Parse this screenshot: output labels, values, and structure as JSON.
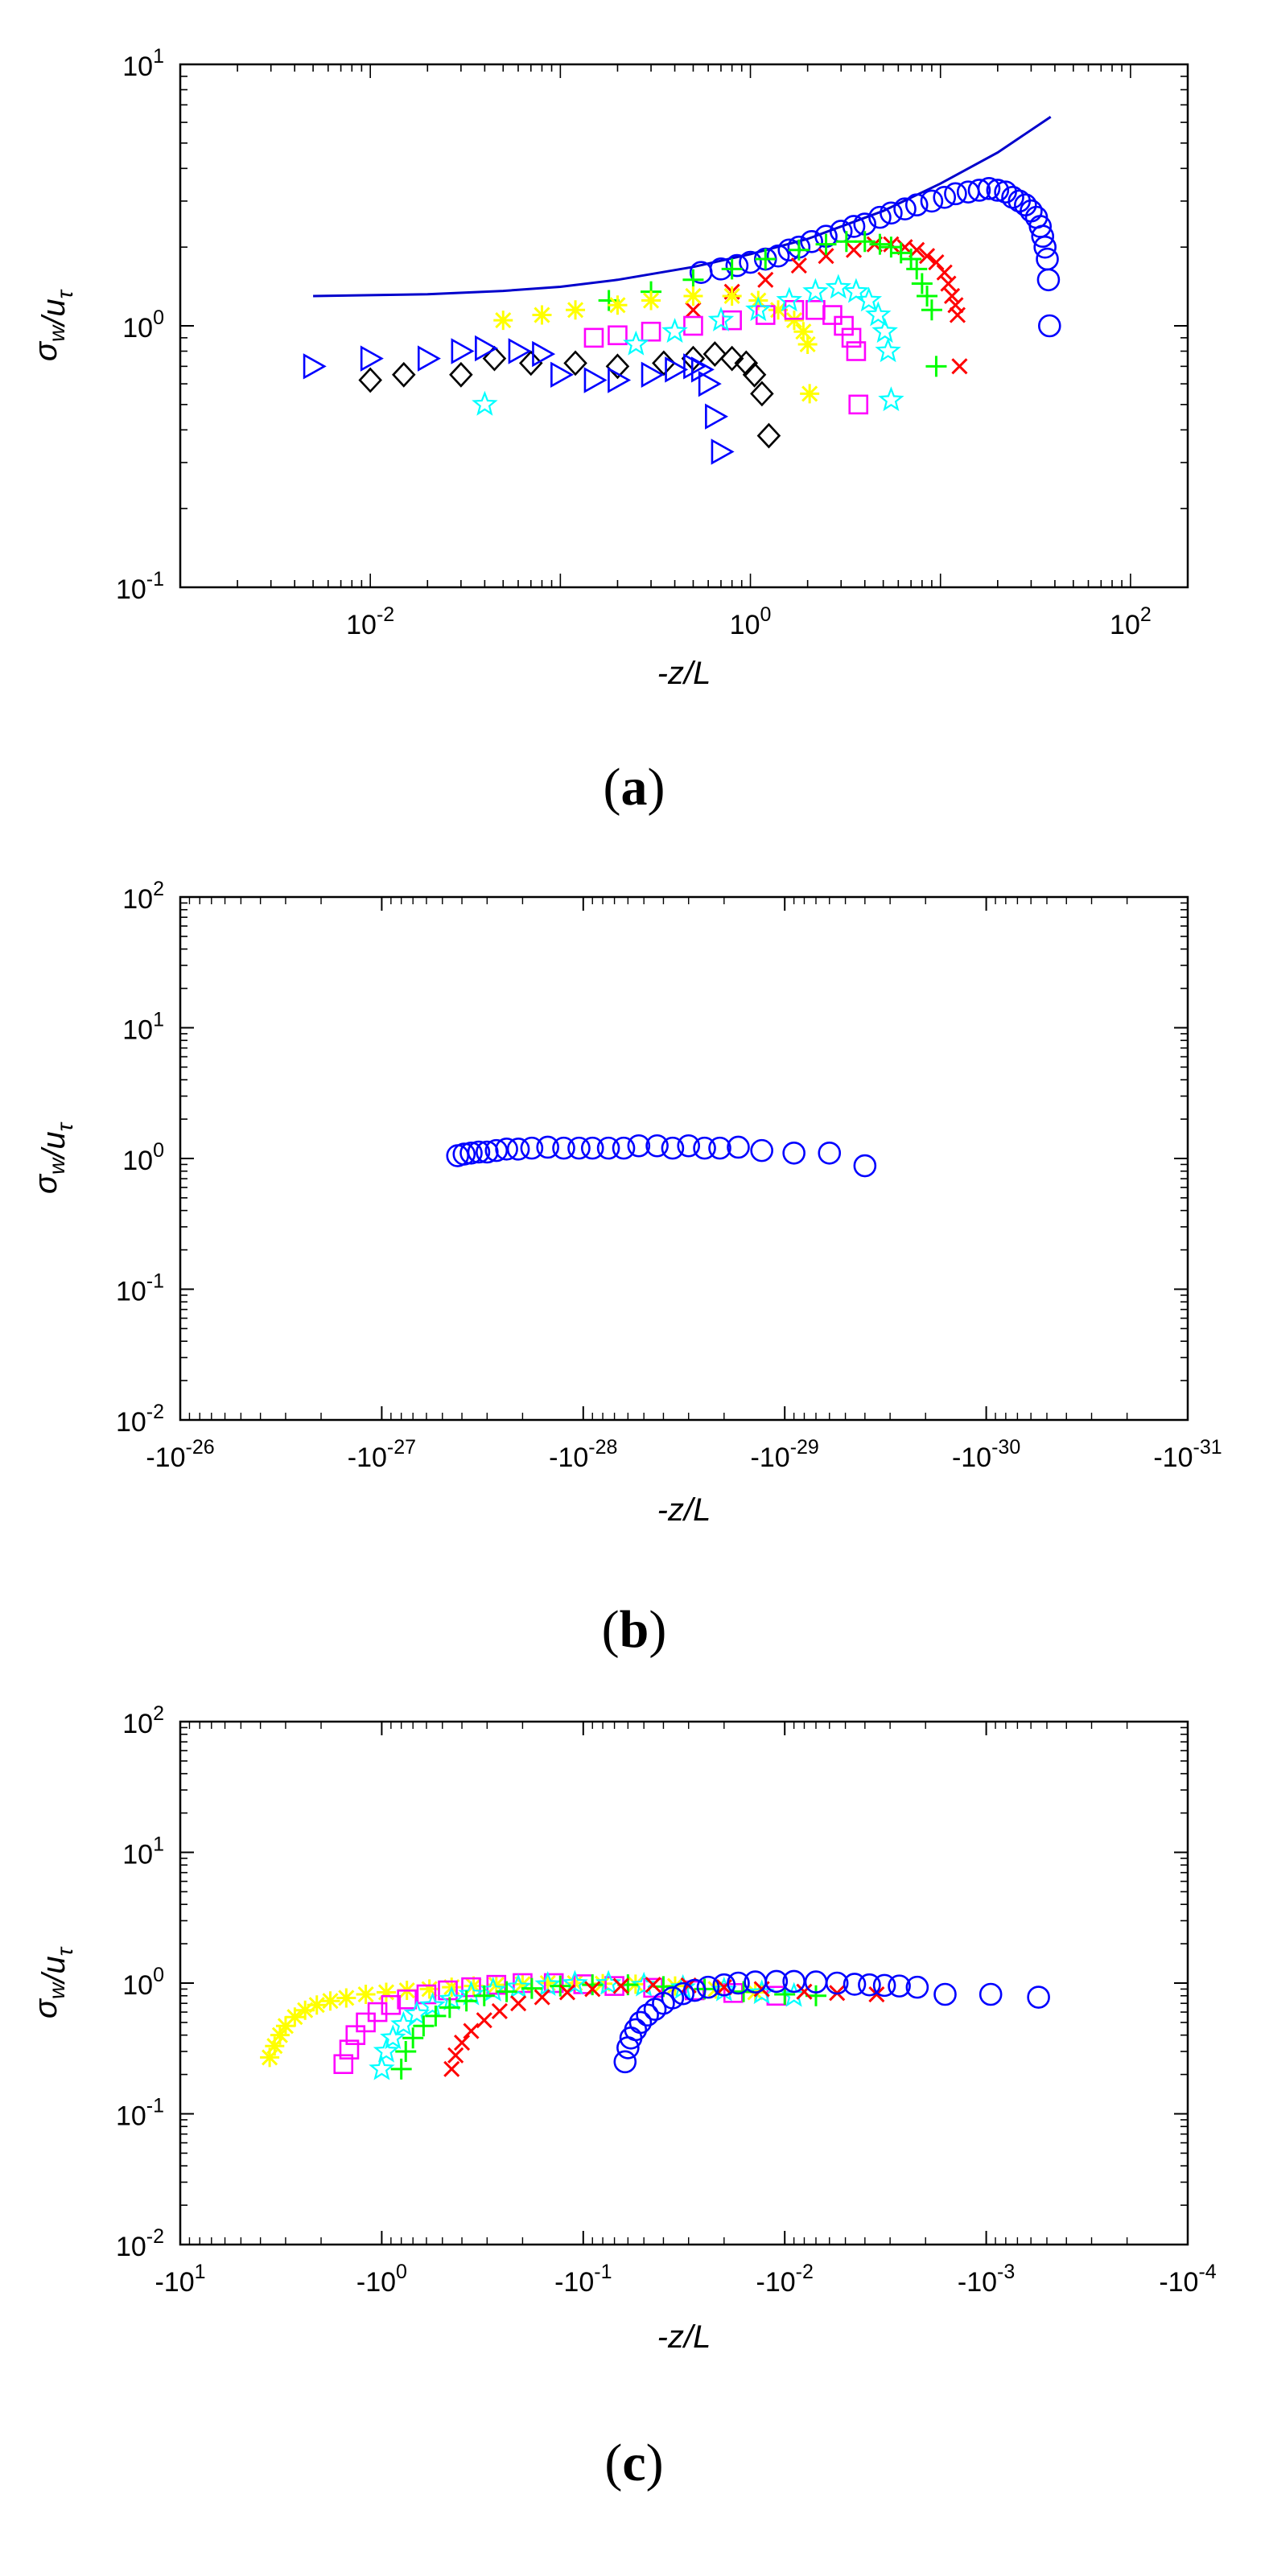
{
  "chart_data": [
    {
      "panel": "(a)",
      "type": "scatter",
      "xlabel": "-z/L",
      "ylabel": "σ_w/u_τ",
      "xscale": "log",
      "yscale": "log",
      "xlim": [
        0.001,
        200
      ],
      "ylim": [
        0.1,
        10
      ],
      "xticks": [
        {
          "value": 0.01,
          "base": "10",
          "exp": "-2"
        },
        {
          "value": 1,
          "base": "10",
          "exp": "0"
        },
        {
          "value": 100,
          "base": "10",
          "exp": "2"
        }
      ],
      "yticks": [
        {
          "value": 0.1,
          "base": "10",
          "exp": "-1"
        },
        {
          "value": 1,
          "base": "10",
          "exp": "0"
        },
        {
          "value": 10,
          "base": "10",
          "exp": "1"
        }
      ],
      "grid": false,
      "reference_curve": {
        "color": "#0000cc",
        "x": [
          0.005,
          0.01,
          0.02,
          0.05,
          0.1,
          0.2,
          0.5,
          1,
          2,
          5,
          10,
          20,
          38
        ],
        "y": [
          1.3,
          1.31,
          1.32,
          1.36,
          1.41,
          1.5,
          1.68,
          1.88,
          2.15,
          2.75,
          3.5,
          4.6,
          6.3
        ]
      },
      "series": [
        {
          "marker": "circle",
          "color": "#0000ff",
          "x": [
            0.55,
            0.7,
            0.85,
            1.0,
            1.2,
            1.4,
            1.6,
            1.8,
            2.1,
            2.5,
            3.0,
            3.5,
            4.0,
            4.8,
            5.5,
            6.5,
            7.5,
            9.0,
            10.5,
            12.0,
            14.0,
            16.0,
            18.0,
            20.0,
            22.0,
            24.0,
            26.0,
            28.0,
            30.0,
            32.0,
            33.5,
            34.5,
            35.5,
            36.5,
            37.0,
            37.5
          ],
          "y": [
            1.6,
            1.65,
            1.7,
            1.75,
            1.8,
            1.85,
            1.95,
            2.0,
            2.1,
            2.2,
            2.3,
            2.4,
            2.45,
            2.6,
            2.7,
            2.8,
            2.9,
            3.0,
            3.1,
            3.2,
            3.25,
            3.3,
            3.35,
            3.3,
            3.25,
            3.1,
            3.0,
            2.9,
            2.75,
            2.6,
            2.4,
            2.2,
            2.0,
            1.8,
            1.5,
            1.0
          ]
        },
        {
          "marker": "x",
          "color": "#ff0000",
          "x": [
            0.5,
            0.8,
            1.2,
            1.8,
            2.5,
            3.5,
            4.5,
            5.5,
            6.5,
            7.5,
            8.5,
            9.5,
            10.5,
            11.0,
            11.5,
            12.0,
            12.3,
            12.6
          ],
          "y": [
            1.15,
            1.35,
            1.5,
            1.7,
            1.85,
            1.95,
            2.05,
            2.05,
            2.0,
            1.95,
            1.85,
            1.75,
            1.6,
            1.45,
            1.3,
            1.2,
            1.1,
            0.7
          ]
        },
        {
          "marker": "plus",
          "color": "#00ff00",
          "x": [
            0.18,
            0.3,
            0.5,
            0.8,
            1.2,
            1.8,
            2.5,
            3.2,
            4.0,
            4.8,
            5.5,
            6.2,
            7.0,
            7.5,
            8.0,
            8.5,
            9.0,
            9.5
          ],
          "y": [
            1.25,
            1.35,
            1.5,
            1.65,
            1.8,
            1.95,
            2.05,
            2.1,
            2.1,
            2.05,
            2.0,
            1.9,
            1.8,
            1.65,
            1.45,
            1.3,
            1.15,
            0.7
          ]
        },
        {
          "marker": "asterisk",
          "color": "#ffff00",
          "x": [
            0.05,
            0.08,
            0.12,
            0.2,
            0.3,
            0.5,
            0.8,
            1.1,
            1.4,
            1.7,
            1.9,
            2.0,
            2.05
          ],
          "y": [
            1.05,
            1.1,
            1.15,
            1.2,
            1.25,
            1.3,
            1.3,
            1.25,
            1.15,
            1.05,
            0.95,
            0.85,
            0.55
          ]
        },
        {
          "marker": "square",
          "color": "#ff00ff",
          "x": [
            0.15,
            0.2,
            0.3,
            0.5,
            0.8,
            1.2,
            1.7,
            2.2,
            2.7,
            3.1,
            3.4,
            3.6,
            3.7
          ],
          "y": [
            0.9,
            0.92,
            0.95,
            1.0,
            1.05,
            1.1,
            1.15,
            1.15,
            1.1,
            1.0,
            0.9,
            0.8,
            0.5
          ]
        },
        {
          "marker": "star",
          "color": "#00ffff",
          "x": [
            0.04,
            0.25,
            0.4,
            0.7,
            1.1,
            1.6,
            2.2,
            2.9,
            3.6,
            4.2,
            4.7,
            5.1,
            5.3,
            5.5
          ],
          "y": [
            0.5,
            0.85,
            0.95,
            1.05,
            1.15,
            1.25,
            1.35,
            1.4,
            1.35,
            1.25,
            1.1,
            0.95,
            0.8,
            0.52
          ]
        },
        {
          "marker": "diamond",
          "color": "#000000",
          "x": [
            0.01,
            0.015,
            0.03,
            0.045,
            0.07,
            0.12,
            0.2,
            0.35,
            0.5,
            0.65,
            0.8,
            0.95,
            1.05,
            1.15,
            1.25
          ],
          "y": [
            0.62,
            0.65,
            0.65,
            0.75,
            0.72,
            0.72,
            0.7,
            0.72,
            0.75,
            0.78,
            0.75,
            0.72,
            0.65,
            0.55,
            0.38
          ]
        },
        {
          "marker": "triangle-right",
          "color": "#0000ff",
          "x": [
            0.005,
            0.01,
            0.02,
            0.03,
            0.04,
            0.06,
            0.08,
            0.1,
            0.15,
            0.2,
            0.3,
            0.4,
            0.5,
            0.55,
            0.6,
            0.65,
            0.7
          ],
          "y": [
            0.7,
            0.75,
            0.75,
            0.8,
            0.82,
            0.8,
            0.78,
            0.65,
            0.62,
            0.62,
            0.65,
            0.68,
            0.7,
            0.68,
            0.6,
            0.45,
            0.33
          ]
        }
      ]
    },
    {
      "panel": "(b)",
      "type": "scatter",
      "xlabel": "-z/L",
      "ylabel": "σ_w/u_τ",
      "xscale": "reciprocal",
      "yscale": "log",
      "xlim_inverse_exponent": [
        26,
        31
      ],
      "ylim": [
        0.01,
        100
      ],
      "xticks": [
        {
          "value": -1e-26,
          "base": "-10",
          "exp": "-26"
        },
        {
          "value": -1e-27,
          "base": "-10",
          "exp": "-27"
        },
        {
          "value": -1e-28,
          "base": "-10",
          "exp": "-28"
        },
        {
          "value": -1e-29,
          "base": "-10",
          "exp": "-29"
        },
        {
          "value": -1e-30,
          "base": "-10",
          "exp": "-30"
        },
        {
          "value": -1e-31,
          "base": "-10",
          "exp": "-31"
        }
      ],
      "yticks": [
        {
          "value": 0.01,
          "base": "10",
          "exp": "-2"
        },
        {
          "value": 0.1,
          "base": "10",
          "exp": "-1"
        },
        {
          "value": 1,
          "base": "10",
          "exp": "0"
        },
        {
          "value": 10,
          "base": "10",
          "exp": "1"
        },
        {
          "value": 100,
          "base": "10",
          "exp": "2"
        }
      ],
      "grid": false,
      "series": [
        {
          "marker": "circle",
          "color": "#0000ff",
          "x": [
            -4.2e-28,
            -3.9e-28,
            -3.6e-28,
            -3.3e-28,
            -3e-28,
            -2.7e-28,
            -2.4e-28,
            -2.1e-28,
            -1.8e-28,
            -1.5e-28,
            -1.25e-28,
            -1.05e-28,
            -9e-29,
            -7.5e-29,
            -6.3e-29,
            -5.3e-29,
            -4.3e-29,
            -3.6e-29,
            -3e-29,
            -2.5e-29,
            -2.1e-29,
            -1.7e-29,
            -1.3e-29,
            -9e-30,
            -6e-30,
            -4e-30
          ],
          "y": [
            1.05,
            1.08,
            1.1,
            1.12,
            1.12,
            1.15,
            1.18,
            1.18,
            1.2,
            1.22,
            1.2,
            1.2,
            1.2,
            1.2,
            1.2,
            1.25,
            1.25,
            1.2,
            1.25,
            1.2,
            1.2,
            1.22,
            1.15,
            1.1,
            1.1,
            0.88
          ]
        }
      ]
    },
    {
      "panel": "(c)",
      "type": "scatter",
      "xlabel": "-z/L",
      "ylabel": "σ_w/u_τ",
      "xscale": "reciprocal",
      "yscale": "log",
      "xlim_inverse_exponent": [
        -1,
        4
      ],
      "ylim": [
        0.01,
        100
      ],
      "xticks": [
        {
          "value": -10,
          "base": "-10",
          "exp": "1"
        },
        {
          "value": -1,
          "base": "-10",
          "exp": "0"
        },
        {
          "value": -0.1,
          "base": "-10",
          "exp": "-1"
        },
        {
          "value": -0.01,
          "base": "-10",
          "exp": "-2"
        },
        {
          "value": -0.001,
          "base": "-10",
          "exp": "-3"
        },
        {
          "value": -0.0001,
          "base": "-10",
          "exp": "-4"
        }
      ],
      "yticks": [
        {
          "value": 0.01,
          "base": "10",
          "exp": "-2"
        },
        {
          "value": 0.1,
          "base": "10",
          "exp": "-1"
        },
        {
          "value": 1,
          "base": "10",
          "exp": "0"
        },
        {
          "value": 10,
          "base": "10",
          "exp": "1"
        },
        {
          "value": 100,
          "base": "10",
          "exp": "2"
        }
      ],
      "grid": false,
      "series": [
        {
          "marker": "asterisk",
          "color": "#ffff00",
          "x": [
            -3.6,
            -3.4,
            -3.2,
            -3.0,
            -2.7,
            -2.4,
            -2.1,
            -1.8,
            -1.5,
            -1.2,
            -0.95,
            -0.75,
            -0.58,
            -0.45,
            -0.35,
            -0.27,
            -0.2,
            -0.15,
            -0.11,
            -0.08,
            -0.055,
            -0.035,
            -0.022,
            -0.014
          ],
          "y": [
            0.27,
            0.33,
            0.4,
            0.47,
            0.55,
            0.62,
            0.68,
            0.73,
            0.77,
            0.82,
            0.85,
            0.88,
            0.9,
            0.93,
            0.95,
            0.97,
            0.98,
            1.0,
            1.0,
            0.99,
            0.98,
            0.95,
            0.9,
            0.85
          ]
        },
        {
          "marker": "square",
          "color": "#ff00ff",
          "x": [
            -1.55,
            -1.45,
            -1.35,
            -1.2,
            -1.05,
            -0.9,
            -0.75,
            -0.6,
            -0.47,
            -0.36,
            -0.27,
            -0.2,
            -0.14,
            -0.1,
            -0.07,
            -0.045,
            -0.028,
            -0.018,
            -0.011
          ],
          "y": [
            0.24,
            0.31,
            0.4,
            0.5,
            0.6,
            0.68,
            0.75,
            0.82,
            0.88,
            0.93,
            0.97,
            1.0,
            1.0,
            0.98,
            0.95,
            0.92,
            0.88,
            0.84,
            0.8
          ]
        },
        {
          "marker": "star",
          "color": "#00ffff",
          "x": [
            -1.0,
            -0.95,
            -0.88,
            -0.78,
            -0.67,
            -0.56,
            -0.45,
            -0.36,
            -0.28,
            -0.21,
            -0.15,
            -0.11,
            -0.075,
            -0.05,
            -0.032,
            -0.02,
            -0.013,
            -0.009
          ],
          "y": [
            0.22,
            0.3,
            0.38,
            0.48,
            0.58,
            0.67,
            0.75,
            0.82,
            0.88,
            0.93,
            0.97,
            0.99,
            0.99,
            0.96,
            0.92,
            0.88,
            0.84,
            0.8
          ]
        },
        {
          "marker": "plus",
          "color": "#00ff00",
          "x": [
            -0.8,
            -0.76,
            -0.7,
            -0.62,
            -0.54,
            -0.46,
            -0.38,
            -0.31,
            -0.24,
            -0.18,
            -0.13,
            -0.09,
            -0.06,
            -0.04,
            -0.025,
            -0.016,
            -0.01,
            -0.007
          ],
          "y": [
            0.22,
            0.3,
            0.38,
            0.47,
            0.56,
            0.65,
            0.73,
            0.8,
            0.86,
            0.91,
            0.95,
            0.97,
            0.97,
            0.94,
            0.9,
            0.86,
            0.82,
            0.8
          ]
        },
        {
          "marker": "x",
          "color": "#ff0000",
          "x": [
            -0.45,
            -0.43,
            -0.4,
            -0.36,
            -0.31,
            -0.26,
            -0.21,
            -0.16,
            -0.12,
            -0.09,
            -0.065,
            -0.045,
            -0.03,
            -0.02,
            -0.013,
            -0.008,
            -0.0055,
            -0.0035
          ],
          "y": [
            0.22,
            0.28,
            0.35,
            0.43,
            0.52,
            0.61,
            0.7,
            0.78,
            0.85,
            0.9,
            0.95,
            0.97,
            0.96,
            0.93,
            0.9,
            0.86,
            0.84,
            0.82
          ]
        },
        {
          "marker": "circle",
          "color": "#0000ff",
          "x": [
            -0.062,
            -0.06,
            -0.058,
            -0.055,
            -0.052,
            -0.048,
            -0.044,
            -0.04,
            -0.036,
            -0.032,
            -0.028,
            -0.024,
            -0.02,
            -0.017,
            -0.014,
            -0.011,
            -0.009,
            -0.007,
            -0.0055,
            -0.0045,
            -0.0038,
            -0.0032,
            -0.0027,
            -0.0022,
            -0.0016,
            -0.00095,
            -0.00055
          ],
          "y": [
            0.25,
            0.32,
            0.38,
            0.44,
            0.5,
            0.57,
            0.63,
            0.7,
            0.77,
            0.83,
            0.88,
            0.93,
            0.97,
            1.0,
            1.02,
            1.03,
            1.03,
            1.02,
            1.0,
            0.98,
            0.97,
            0.96,
            0.95,
            0.93,
            0.82,
            0.82,
            0.78
          ]
        }
      ]
    }
  ]
}
